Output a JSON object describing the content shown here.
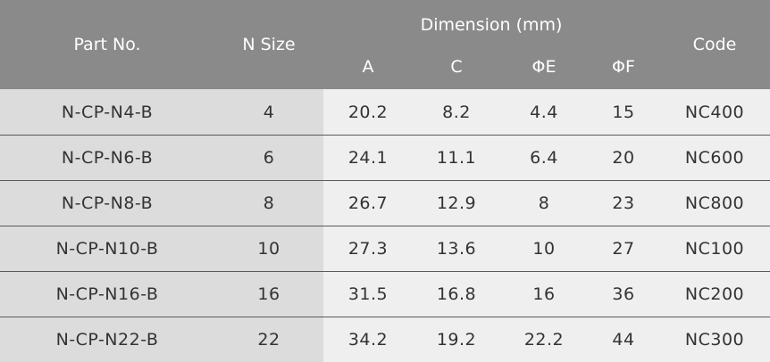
{
  "table": {
    "header": {
      "part_no": "Part No.",
      "n_size": "N Size",
      "dimension": "Dimension (mm)",
      "sub": [
        "A",
        "C",
        "ΦE",
        "ΦF"
      ],
      "code": "Code"
    },
    "rows": [
      [
        "N-CP-N4-B",
        "4",
        "20.2",
        "8.2",
        "4.4",
        "15",
        "NC400"
      ],
      [
        "N-CP-N6-B",
        "6",
        "24.1",
        "11.1",
        "6.4",
        "20",
        "NC600"
      ],
      [
        "N-CP-N8-B",
        "8",
        "26.7",
        "12.9",
        "8",
        "23",
        "NC800"
      ],
      [
        "N-CP-N10-B",
        "10",
        "27.3",
        "13.6",
        "10",
        "27",
        "NC100"
      ],
      [
        "N-CP-N16-B",
        "16",
        "31.5",
        "16.8",
        "16",
        "36",
        "NC200"
      ],
      [
        "N-CP-N22-B",
        "22",
        "34.2",
        "19.2",
        "22.2",
        "44",
        "NC300"
      ]
    ]
  }
}
